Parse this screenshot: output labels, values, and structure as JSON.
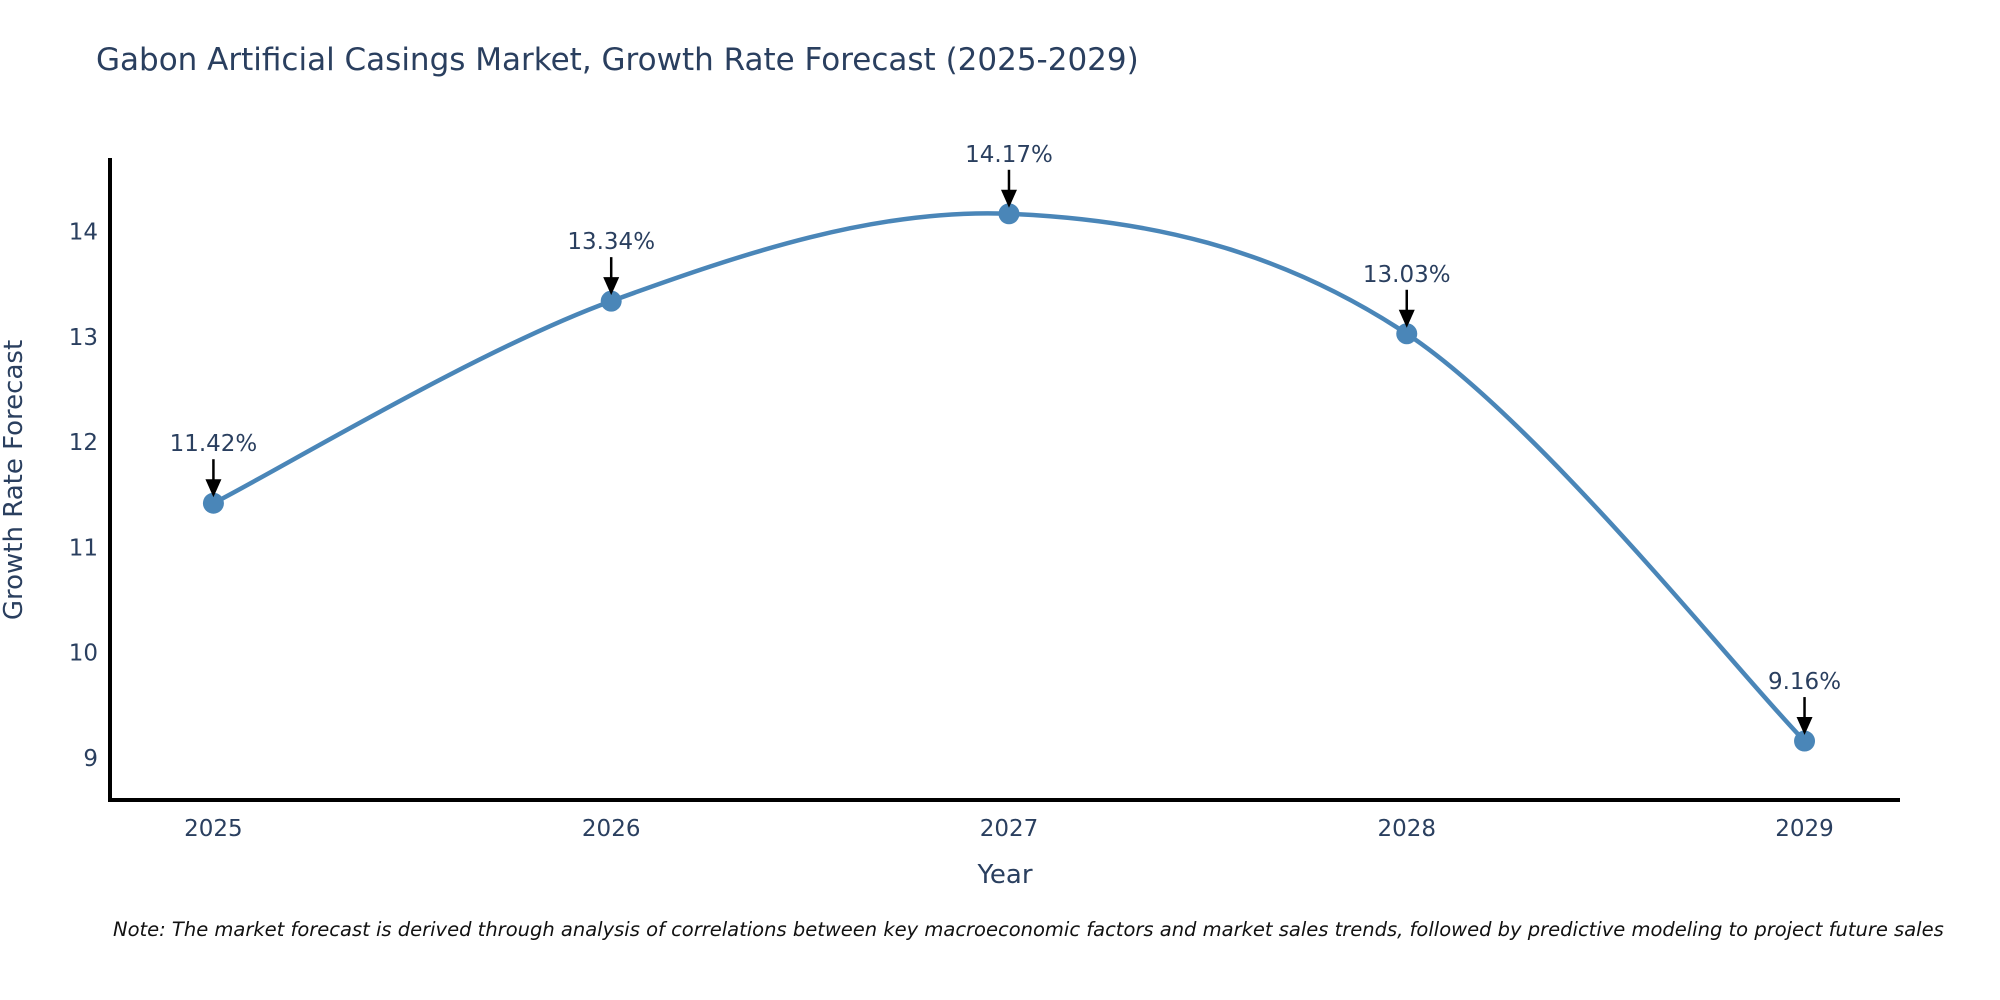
{
  "title": "Gabon Artificial Casings Market, Growth Rate Forecast (2025-2029)",
  "note": "Note: The market forecast is derived through analysis of correlations between key macroeconomic factors and market sales trends, followed by predictive modeling to project future sales",
  "chart_data": {
    "type": "line",
    "title": "Gabon Artificial Casings Market, Growth Rate Forecast (2025-2029)",
    "xlabel": "Year",
    "ylabel": "Growth Rate Forecast",
    "x": [
      2025,
      2026,
      2027,
      2028,
      2029
    ],
    "series": [
      {
        "name": "Growth Rate Forecast",
        "values": [
          11.42,
          13.34,
          14.17,
          13.03,
          9.16
        ]
      }
    ],
    "point_labels": [
      "11.42%",
      "13.34%",
      "14.17%",
      "13.03%",
      "9.16%"
    ],
    "x_tick_labels": [
      "2025",
      "2026",
      "2027",
      "2028",
      "2029"
    ],
    "y_ticks": [
      9,
      10,
      11,
      12,
      13,
      14
    ],
    "xlim": [
      2024.74,
      2029.24
    ],
    "ylim": [
      8.6,
      14.7
    ],
    "grid": false,
    "line_shape": "spline",
    "legend": "none",
    "annotations": "value labels above each point with black arrow pointing down at marker",
    "colors": {
      "line": "#4a86b8",
      "marker": "#4a86b8",
      "axis": "#000000",
      "tick_text": "#2a3f5f",
      "annotation_text": "#2a3f5f",
      "arrow": "#000000",
      "title_text": "#2a3f5f",
      "background": "#ffffff"
    }
  }
}
